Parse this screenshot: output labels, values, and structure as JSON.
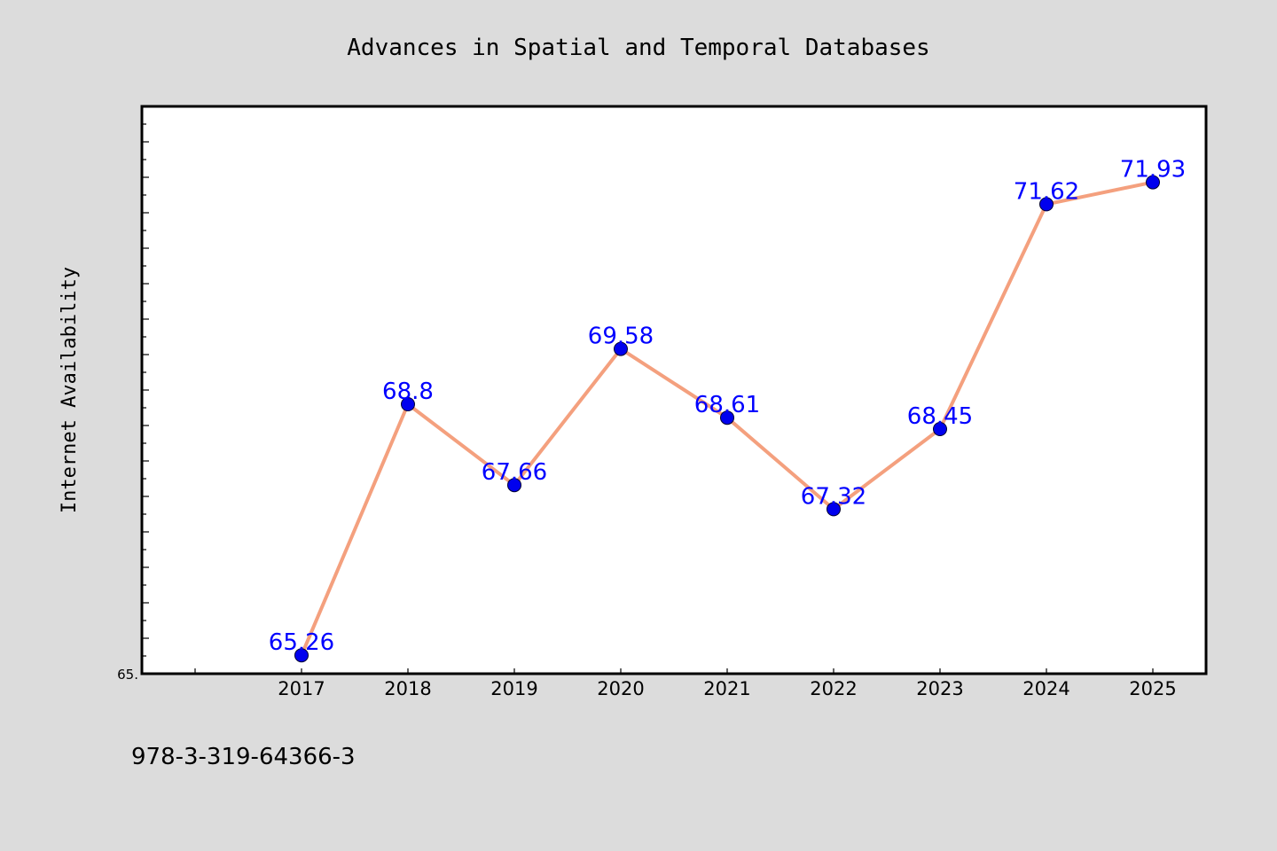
{
  "chart_data": {
    "type": "line",
    "title": "Advances in Spatial and Temporal Databases",
    "xlabel": "",
    "ylabel": "Internet Availability",
    "categories": [
      "2017",
      "2018",
      "2019",
      "2020",
      "2021",
      "2022",
      "2023",
      "2024",
      "2025"
    ],
    "series": [
      {
        "values": [
          65.26,
          68.8,
          67.66,
          69.58,
          68.61,
          67.32,
          68.45,
          71.62,
          71.93
        ]
      }
    ],
    "data_labels": [
      "65.26",
      "68.8",
      "67.66",
      "69.58",
      "68.61",
      "67.32",
      "68.45",
      "71.62",
      "71.93"
    ],
    "y_tick_labels": [
      "65."
    ],
    "ylim": [
      65.0,
      73.0
    ],
    "grid": false,
    "legend": "none",
    "footnote": "978-3-319-64366-3"
  },
  "colors": {
    "background": "#dcdcdc",
    "plot_background": "#ffffff",
    "line": "#f4a07e",
    "marker": "#0000ee",
    "data_label": "#0000ff",
    "axis": "#000000"
  }
}
